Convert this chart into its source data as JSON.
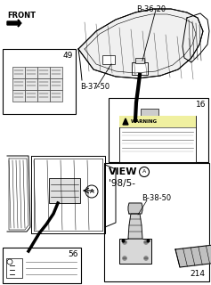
{
  "bg_color": "#ffffff",
  "front_label": "FRONT",
  "B_36_20": "B-36-20",
  "B_37_50": "B-37-50",
  "B_38_50": "B-38-50",
  "item_49": "49",
  "item_16": "16",
  "item_56": "56",
  "item_214": "214",
  "view_a": "VIEW",
  "view_year": "'98/5-",
  "warning_text": "WARNING"
}
